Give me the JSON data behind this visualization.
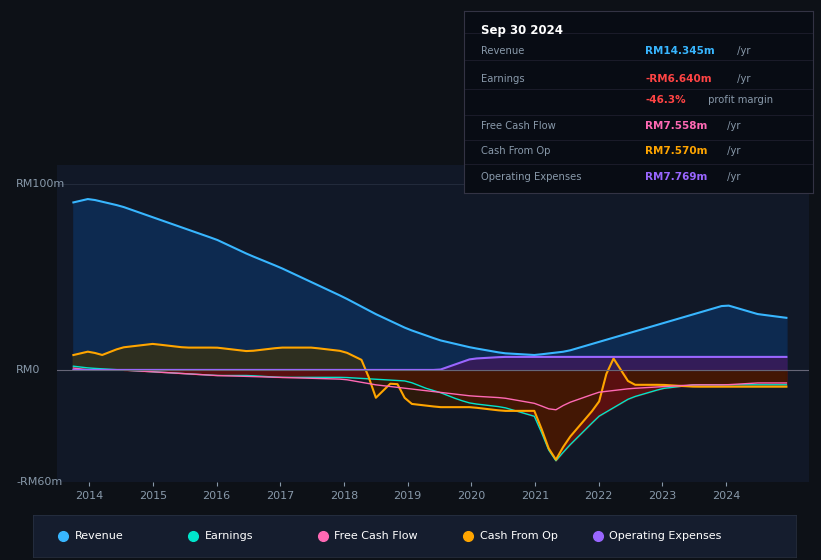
{
  "bg_color": "#0d1117",
  "plot_bg": "#111827",
  "text_color": "#8899aa",
  "ylim": [
    -60,
    110
  ],
  "xlim": [
    2013.5,
    2025.3
  ],
  "xtick_labels": [
    "2014",
    "2015",
    "2016",
    "2017",
    "2018",
    "2019",
    "2020",
    "2021",
    "2022",
    "2023",
    "2024"
  ],
  "xtick_positions": [
    2014,
    2015,
    2016,
    2017,
    2018,
    2019,
    2020,
    2021,
    2022,
    2023,
    2024
  ],
  "info_box": {
    "date": "Sep 30 2024",
    "rows": [
      {
        "label": "Revenue",
        "value": "RM14.345m",
        "unit": " /yr",
        "color": "#38b6ff"
      },
      {
        "label": "Earnings",
        "value": "-RM6.640m",
        "unit": " /yr",
        "color": "#ff4444"
      },
      {
        "label": "",
        "value": "-46.3%",
        "unit": " profit margin",
        "color": "#ff4444"
      },
      {
        "label": "Free Cash Flow",
        "value": "RM7.558m",
        "unit": " /yr",
        "color": "#ff69b4"
      },
      {
        "label": "Cash From Op",
        "value": "RM7.570m",
        "unit": " /yr",
        "color": "#ffa500"
      },
      {
        "label": "Operating Expenses",
        "value": "RM7.769m",
        "unit": " /yr",
        "color": "#9966ff"
      }
    ]
  },
  "legend": [
    {
      "label": "Revenue",
      "color": "#38b6ff"
    },
    {
      "label": "Earnings",
      "color": "#00e5cc"
    },
    {
      "label": "Free Cash Flow",
      "color": "#ff69b4"
    },
    {
      "label": "Cash From Op",
      "color": "#ffa500"
    },
    {
      "label": "Operating Expenses",
      "color": "#9966ff"
    }
  ]
}
